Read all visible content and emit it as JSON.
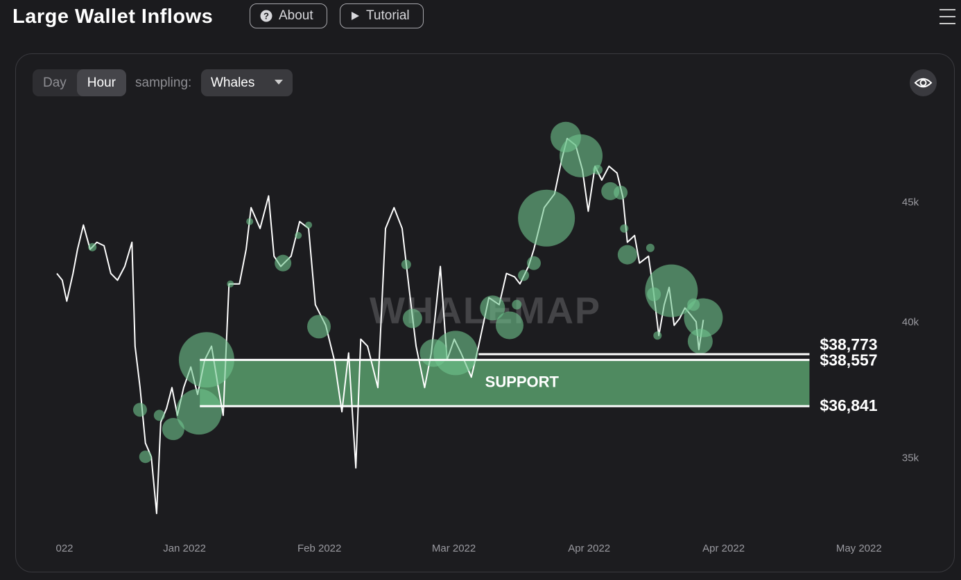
{
  "header": {
    "title": "Large Wallet Inflows",
    "buttons": [
      "About",
      "Tutorial"
    ]
  },
  "controls": {
    "timeframes": [
      "Day",
      "Hour"
    ],
    "sampling_label": "sampling:",
    "sampling_value": "Whales"
  },
  "chart_data": {
    "type": "line",
    "watermark": "WHALEMAP",
    "log": true,
    "color": "#ffffff",
    "xlim": [
      -1.7,
      184.6
    ],
    "xticks": [
      {
        "value": 0,
        "label": "022"
      },
      {
        "value": 26.7,
        "label": "Jan 2022"
      },
      {
        "value": 56.7,
        "label": "Feb 2022"
      },
      {
        "value": 86.6,
        "label": "Mar 2022"
      },
      {
        "value": 116.7,
        "label": "Apr 2022"
      },
      {
        "value": 146.6,
        "label": "Apr 2022"
      },
      {
        "value": 176.7,
        "label": "May 2022"
      }
    ],
    "ylim": [
      32500,
      49600
    ],
    "yticks": [
      {
        "value": 35000,
        "label": "35k"
      },
      {
        "value": 40000,
        "label": "40k"
      },
      {
        "value": 45000,
        "label": "45k"
      }
    ],
    "x": [
      -1.7,
      -0.5,
      0.5,
      1.9,
      2.9,
      4.2,
      5.7,
      7.2,
      8.8,
      10.3,
      11.8,
      13.4,
      15.0,
      15.7,
      16.8,
      18.0,
      19.3,
      20.5,
      21.4,
      22.7,
      23.9,
      25.1,
      26.5,
      28.1,
      29.6,
      31.2,
      32.7,
      34.2,
      35.3,
      36.6,
      38.9,
      40.4,
      41.5,
      43.5,
      45.4,
      46.6,
      48.1,
      50.4,
      52.3,
      54.3,
      55.8,
      58.1,
      60.0,
      61.7,
      63.2,
      64.8,
      65.9,
      67.4,
      69.7,
      71.4,
      73.3,
      75.1,
      76.7,
      78.2,
      80.1,
      81.6,
      83.6,
      85.1,
      86.7,
      88.2,
      90.5,
      92.1,
      94.4,
      96.7,
      98.3,
      100.1,
      101.3,
      103.2,
      104.4,
      106.7,
      109.0,
      110.6,
      111.8,
      113.7,
      115.2,
      116.5,
      118.0,
      119.5,
      121.1,
      122.9,
      124.2,
      125.2,
      126.8,
      127.9,
      129.9,
      131.0,
      132.2,
      133.4,
      134.5,
      135.6,
      136.8,
      138.0,
      139.3,
      140.5,
      141.1,
      142.1
    ],
    "values": [
      41980,
      41700,
      40850,
      41980,
      42990,
      44030,
      42990,
      43290,
      43140,
      41980,
      41700,
      42270,
      43290,
      39080,
      37520,
      35530,
      35050,
      33150,
      36260,
      36760,
      37520,
      36510,
      37520,
      38290,
      37270,
      38560,
      39080,
      37520,
      36510,
      41550,
      41550,
      42990,
      44790,
      43880,
      45310,
      42700,
      42270,
      42700,
      44180,
      43880,
      40710,
      39890,
      38560,
      36640,
      38820,
      34670,
      39350,
      39080,
      37520,
      43880,
      44790,
      43880,
      41270,
      39080,
      37520,
      38820,
      42270,
      38560,
      39350,
      38820,
      37910,
      39080,
      40990,
      40710,
      41980,
      41840,
      41550,
      42270,
      42990,
      44790,
      45400,
      46970,
      47940,
      47620,
      46490,
      44630,
      46650,
      46020,
      46650,
      46340,
      45250,
      43290,
      43580,
      42410,
      42700,
      41270,
      39490,
      40710,
      41410,
      39890,
      40160,
      40580,
      40300,
      40030,
      38950,
      40110
    ],
    "bubbles": {
      "color": "#6fc48d",
      "x": [
        6.2,
        16.8,
        18.0,
        24.2,
        31.6,
        29.9,
        21.1,
        36.9,
        41.2,
        52.0,
        54.3,
        48.6,
        56.6,
        76.0,
        77.4,
        82.1,
        87.0,
        95.2,
        99.0,
        100.6,
        102.1,
        104.4,
        107.2,
        111.5,
        114.9,
        118.6,
        121.4,
        123.7,
        124.5,
        125.2,
        130.3,
        135.0,
        131.1,
        142.1,
        141.4,
        131.9,
        139.9
      ],
      "values": [
        43080,
        36710,
        35050,
        36020,
        38560,
        36640,
        36510,
        41550,
        44180,
        43580,
        44030,
        42410,
        39840,
        42350,
        40160,
        38820,
        38820,
        40580,
        39890,
        40710,
        41900,
        42410,
        44330,
        48010,
        47130,
        46490,
        45520,
        45460,
        43880,
        42760,
        43050,
        41270,
        41130,
        40190,
        39270,
        39490,
        40710
      ],
      "sizes": [
        6,
        10,
        9,
        16,
        40,
        33,
        8,
        5,
        5,
        5,
        5,
        12,
        17,
        7,
        14,
        20,
        32,
        18,
        20,
        7,
        8,
        10,
        41,
        22,
        31,
        7,
        13,
        10,
        6,
        14,
        6,
        38,
        10,
        28,
        18,
        6,
        9
      ]
    },
    "levels": [
      {
        "value": 38773,
        "label": "$38,773",
        "x": [
          92.1,
          165.7
        ]
      },
      {
        "value": 38557,
        "label": "$38,557",
        "x": [
          30.1,
          165.7
        ]
      },
      {
        "value": 36841,
        "label": "$36,841",
        "x": [
          30.1,
          165.7
        ]
      }
    ],
    "support": {
      "label": "SUPPORT",
      "color": "#4f8a60"
    }
  }
}
